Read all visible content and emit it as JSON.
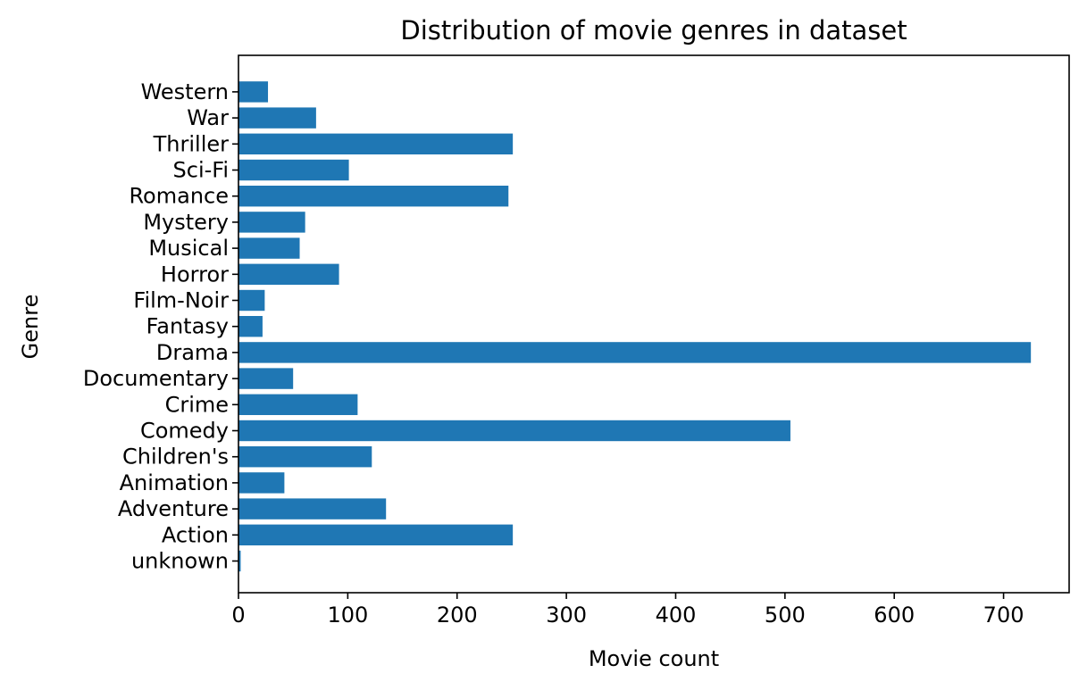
{
  "chart_data": {
    "type": "bar",
    "orientation": "horizontal",
    "title": "Distribution of movie genres in dataset",
    "xlabel": "Movie count",
    "ylabel": "Genre",
    "xlim": [
      0,
      760
    ],
    "xticks": [
      0,
      100,
      200,
      300,
      400,
      500,
      600,
      700
    ],
    "grid": false,
    "color": "#1f77b4",
    "categories": [
      "unknown",
      "Action",
      "Adventure",
      "Animation",
      "Children's",
      "Comedy",
      "Crime",
      "Documentary",
      "Drama",
      "Fantasy",
      "Film-Noir",
      "Horror",
      "Musical",
      "Mystery",
      "Romance",
      "Sci-Fi",
      "Thriller",
      "War",
      "Western"
    ],
    "values": [
      2,
      251,
      135,
      42,
      122,
      505,
      109,
      50,
      725,
      22,
      24,
      92,
      56,
      61,
      247,
      101,
      251,
      71,
      27
    ]
  }
}
